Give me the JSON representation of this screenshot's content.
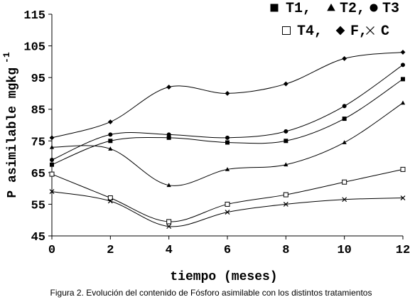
{
  "chart_data": {
    "type": "line",
    "x": [
      0,
      2,
      4,
      6,
      8,
      10,
      12
    ],
    "xlabel": "tiempo (meses)",
    "ylabel": "P asimilable mgkg",
    "ylabel_superscript": "-1",
    "xlim": [
      0,
      12
    ],
    "ylim": [
      45,
      115
    ],
    "x_ticks": [
      "0",
      "2",
      "4",
      "6",
      "8",
      "10",
      "12"
    ],
    "y_ticks": [
      "45",
      "55",
      "65",
      "75",
      "85",
      "95",
      "105",
      "115"
    ],
    "grid": false,
    "legend_placement": "top-right",
    "legend_rows": [
      [
        {
          "marker": "square-filled",
          "label": "T1,"
        },
        {
          "marker": "triangle-filled",
          "label": "T2,"
        },
        {
          "marker": "circle-filled",
          "label": "T3"
        }
      ],
      [
        {
          "marker": "square-open",
          "label": "T4,"
        },
        {
          "marker": "diamond-filled",
          "label": "F,"
        },
        {
          "marker": "cross",
          "label": "C"
        }
      ]
    ],
    "series": [
      {
        "name": "T1",
        "marker": "square-filled",
        "values": [
          67.5,
          75.0,
          76.0,
          74.5,
          75.0,
          82.0,
          94.5
        ]
      },
      {
        "name": "T2",
        "marker": "triangle-filled",
        "values": [
          73.0,
          72.5,
          61.0,
          66.0,
          67.5,
          74.5,
          87.0
        ]
      },
      {
        "name": "T3",
        "marker": "circle-filled",
        "values": [
          69.0,
          77.0,
          77.0,
          76.0,
          78.0,
          86.0,
          99.0
        ]
      },
      {
        "name": "T4",
        "marker": "square-open",
        "values": [
          64.5,
          57.0,
          49.5,
          55.0,
          58.0,
          62.0,
          66.0
        ]
      },
      {
        "name": "F",
        "marker": "diamond-filled",
        "values": [
          76.0,
          81.0,
          92.0,
          90.0,
          93.0,
          101.0,
          103.0
        ]
      },
      {
        "name": "C",
        "marker": "cross",
        "values": [
          59.0,
          56.0,
          48.0,
          52.5,
          55.0,
          56.5,
          57.0
        ]
      }
    ]
  },
  "caption": "Figura 2. Evolución del contenido de Fósforo asimilable con los distintos tratamientos"
}
